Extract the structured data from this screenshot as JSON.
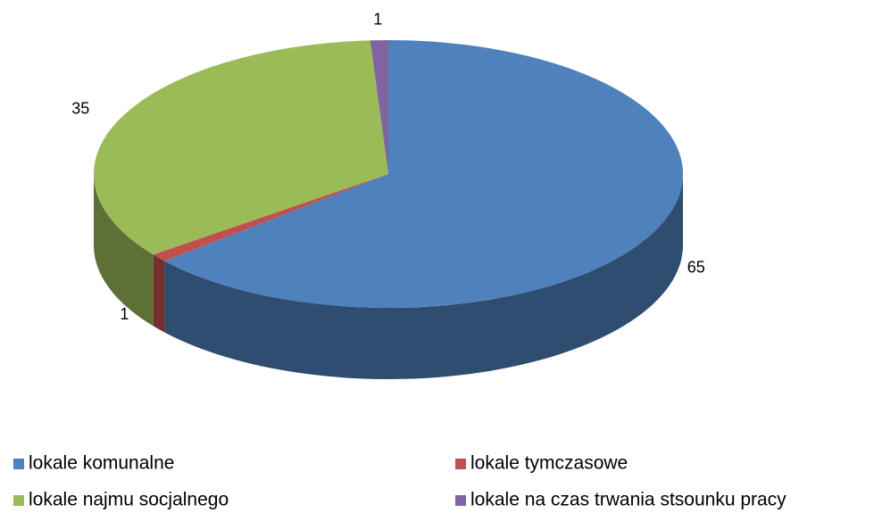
{
  "chart_data": {
    "type": "pie",
    "categories": [
      "lokale komunalne",
      "lokale tymczasowe",
      "lokale najmu socjalnego",
      "lokale na czas trwania stsounku pracy"
    ],
    "values": [
      65,
      1,
      35,
      1
    ],
    "colors": [
      "#4f81bd",
      "#c0504d",
      "#9bbb59",
      "#8064a2"
    ]
  }
}
